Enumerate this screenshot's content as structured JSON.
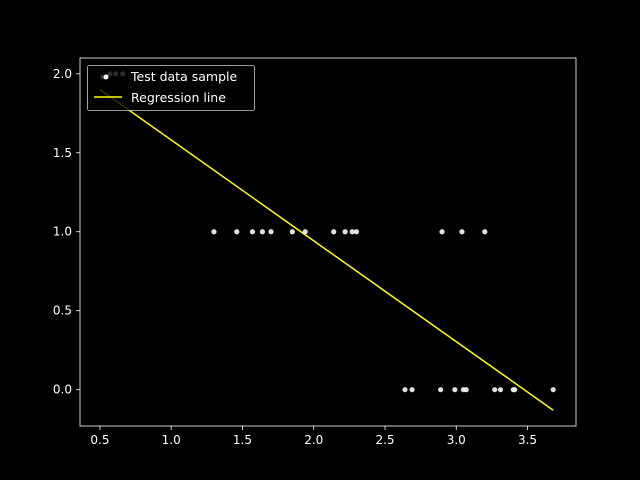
{
  "chart_data": {
    "type": "scatter",
    "title": "",
    "xlabel": "",
    "ylabel": "",
    "xlim": [
      0.36,
      3.84
    ],
    "ylim": [
      -0.23,
      2.1
    ],
    "x_ticks": [
      0.5,
      1.0,
      1.5,
      2.0,
      2.5,
      3.0,
      3.5
    ],
    "x_tick_labels": [
      "0.5",
      "1.0",
      "1.5",
      "2.0",
      "2.5",
      "3.0",
      "3.5"
    ],
    "y_ticks": [
      0.0,
      0.5,
      1.0,
      1.5,
      2.0
    ],
    "y_tick_labels": [
      "0.0",
      "0.5",
      "1.0",
      "1.5",
      "2.0"
    ],
    "grid": false,
    "legend_position": "top-left",
    "series": [
      {
        "name": "Test data sample",
        "kind": "points",
        "color": "#ffffff",
        "points": [
          [
            0.52,
            1.98
          ],
          [
            0.57,
            2.0
          ],
          [
            0.61,
            2.0
          ],
          [
            0.66,
            2.0
          ],
          [
            1.3,
            1.0
          ],
          [
            1.46,
            1.0
          ],
          [
            1.57,
            1.0
          ],
          [
            1.64,
            1.0
          ],
          [
            1.7,
            1.0
          ],
          [
            1.85,
            1.0
          ],
          [
            1.94,
            1.0
          ],
          [
            2.14,
            1.0
          ],
          [
            2.22,
            1.0
          ],
          [
            2.27,
            1.0
          ],
          [
            2.3,
            1.0
          ],
          [
            2.9,
            1.0
          ],
          [
            3.04,
            1.0
          ],
          [
            3.2,
            1.0
          ],
          [
            2.64,
            0.0
          ],
          [
            2.69,
            0.0
          ],
          [
            2.89,
            0.0
          ],
          [
            2.99,
            0.0
          ],
          [
            3.05,
            0.0
          ],
          [
            3.07,
            0.0
          ],
          [
            3.27,
            0.0
          ],
          [
            3.31,
            0.0
          ],
          [
            3.4,
            0.0
          ],
          [
            3.41,
            0.0
          ],
          [
            3.68,
            0.0
          ]
        ]
      },
      {
        "name": "Regression line",
        "kind": "line",
        "color": "#ffff00",
        "points": [
          [
            0.5,
            1.9
          ],
          [
            3.68,
            -0.13
          ]
        ]
      }
    ]
  }
}
